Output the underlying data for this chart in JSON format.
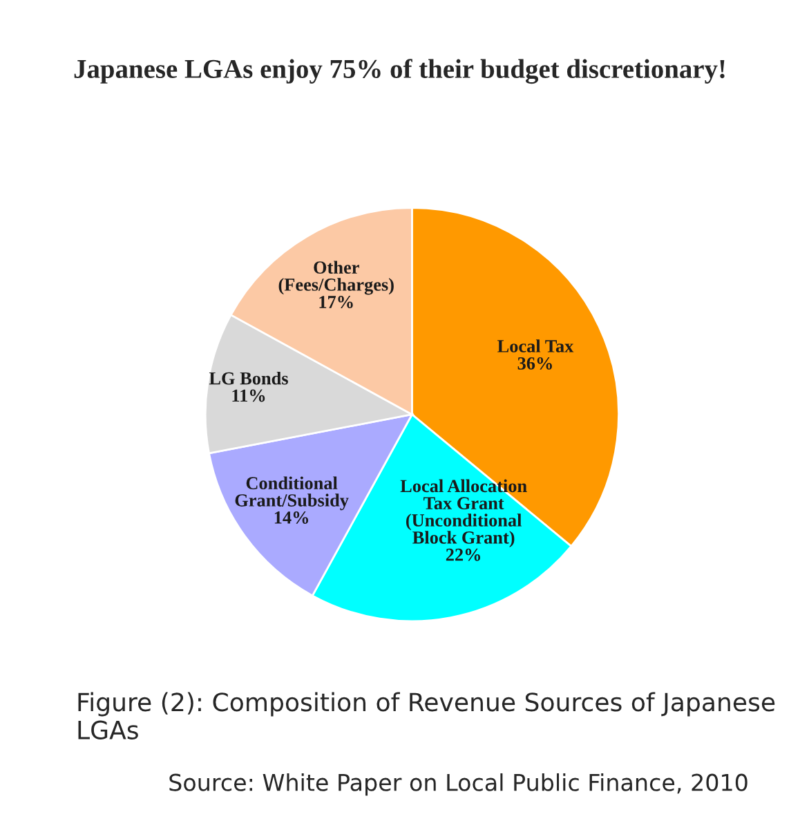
{
  "chart_data": {
    "type": "pie",
    "title": "Japanese LGAs enjoy 75% of their budget discretionary!",
    "categories": [
      "Local Tax",
      "Local Allocation\nTax Grant\n(Unconditional\nBlock Grant)",
      "Conditional\nGrant/Subsidy",
      "LG Bonds",
      "Other\n(Fees/Charges)"
    ],
    "values": [
      36,
      22,
      14,
      11,
      17
    ],
    "colors": [
      "#ff9900",
      "#00ffff",
      "#aaaaff",
      "#d9d9d9",
      "#fcc9a5"
    ],
    "value_labels": [
      "36%",
      "22%",
      "14%",
      "11%",
      "17%"
    ],
    "annotations": [
      "Figure (2): Composition of Revenue Sources of Japanese LGAs",
      "Source: White Paper on Local Public Finance, 2010"
    ]
  }
}
